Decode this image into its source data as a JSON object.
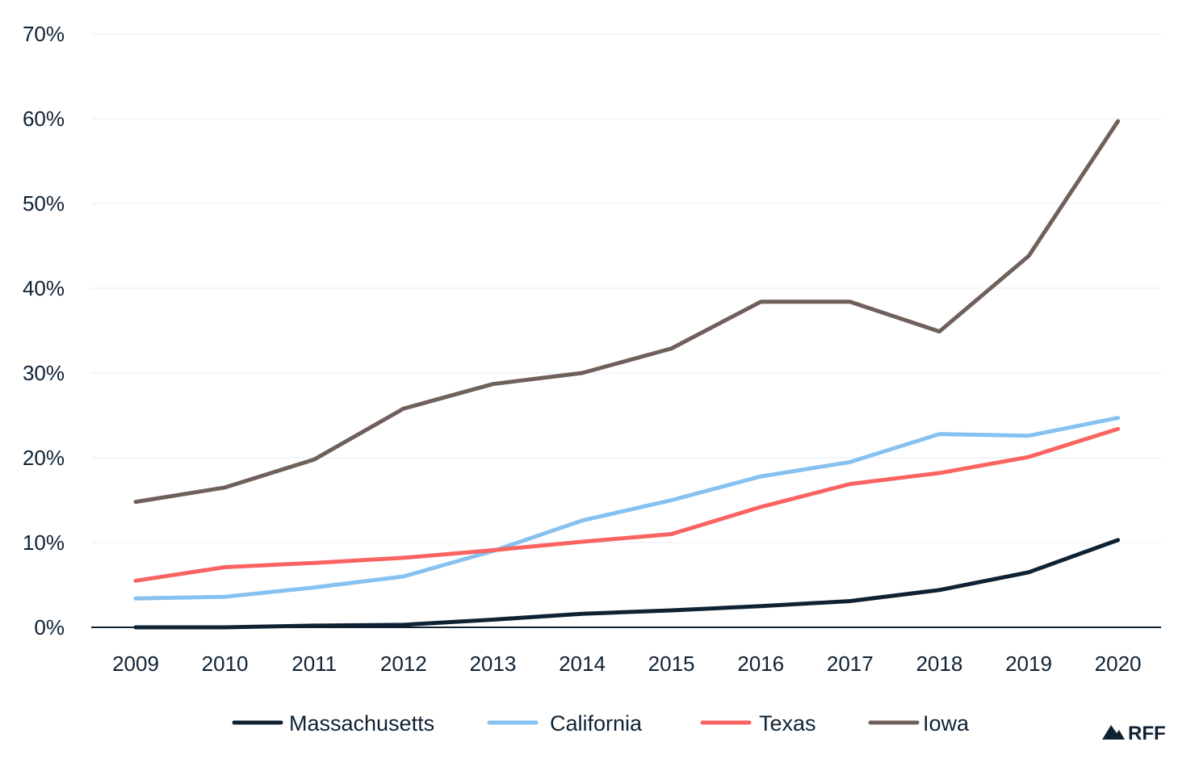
{
  "chart_data": {
    "type": "line",
    "title": "",
    "xlabel": "",
    "ylabel": "",
    "x": [
      "2009",
      "2010",
      "2011",
      "2012",
      "2013",
      "2014",
      "2015",
      "2016",
      "2017",
      "2018",
      "2019",
      "2020"
    ],
    "ylim": [
      0,
      70
    ],
    "yticks": [
      0,
      10,
      20,
      30,
      40,
      50,
      60,
      70
    ],
    "ytick_labels": [
      "0%",
      "10%",
      "20%",
      "30%",
      "40%",
      "50%",
      "60%",
      "70%"
    ],
    "grid": true,
    "legend_position": "bottom",
    "series": [
      {
        "name": "Massachusetts",
        "color": "#0f2233",
        "values": [
          0.0,
          0.0,
          0.2,
          0.3,
          0.9,
          1.6,
          2.0,
          2.5,
          3.1,
          4.4,
          6.5,
          10.3
        ]
      },
      {
        "name": "California",
        "color": "#86c1f0",
        "values": [
          3.4,
          3.6,
          4.7,
          6.0,
          9.0,
          12.6,
          15.0,
          17.8,
          19.5,
          22.8,
          22.6,
          24.7
        ]
      },
      {
        "name": "Texas",
        "color": "#f96360",
        "values": [
          5.5,
          7.1,
          7.6,
          8.2,
          9.1,
          10.1,
          11.0,
          14.2,
          16.9,
          18.2,
          20.1,
          23.4
        ]
      },
      {
        "name": "Iowa",
        "color": "#6f605b",
        "values": [
          14.8,
          16.5,
          19.8,
          25.8,
          28.7,
          30.0,
          32.9,
          38.4,
          38.4,
          34.9,
          43.8,
          59.7
        ]
      }
    ]
  },
  "branding": {
    "logo_text": "RFF",
    "logo_icon": "mountain-icon"
  }
}
